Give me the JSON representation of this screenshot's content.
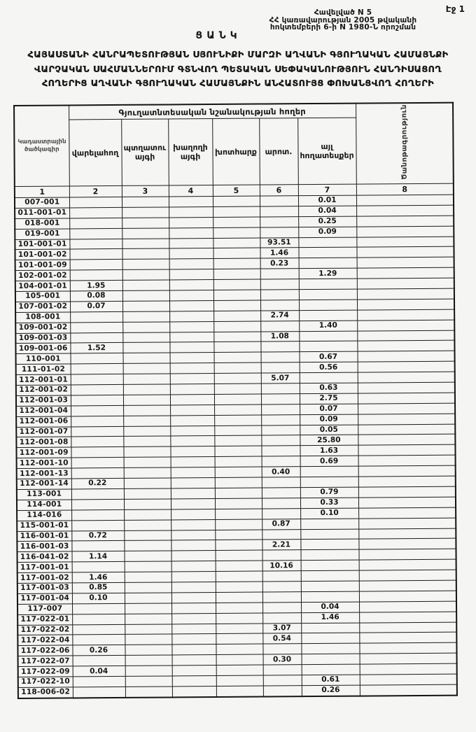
{
  "page": {
    "page_number_label": "Էջ 1",
    "appendix_line1": "Հավելված N 5",
    "appendix_line2": "ՀՀ կառավարության 2005 թվականի",
    "appendix_line3": "հոկտեմբերի 6-ի N 1980-Ն որոշման",
    "list_heading": "ՑԱՆԿ",
    "title_line1": "ՀԱՅԱՍՏԱՆԻ ՀԱՆՐԱՊԵՏՈՒԹՅԱՆ ՍՅՈՒՆԻՔԻ ՄԱՐԶԻ ԱՂՎԱՆԻ ԳՅՈՒՂԱԿԱՆ ՀԱՄԱՅՆՔԻ",
    "title_line2": "ՎԱՐՉԱԿԱՆ ՍԱՀՄԱՆՆԵՐՈՒՄ ԳՏՆՎՈՂ ՊԵՏԱԿԱՆ ՍԵՓԱԿԱՆՈՒԹՅՈՒՆ ՀԱՆԴԻՍԱՑՈՂ",
    "title_line3": "ՀՈՂԵՐԻՑ ԱՂՎԱՆԻ ԳՅՈՒՂԱԿԱՆ ՀԱՄԱՅՆՔԻՆ ԱՆՀԱՏՈՒՅՑ ՓՈԽԱՆՑՎՈՂ ՀՈՂԵՐԻ"
  },
  "table": {
    "code_header": "Կադաստրային ծածկագիր",
    "group_header": "Գյուղատնտեսական նշանակության հողեր",
    "sub_headers": [
      "վարելահող",
      "պտղատու այգի",
      "խաղողի այգի",
      "խոտհարք",
      "արոտ.",
      "այլ հողատեսքեր"
    ],
    "note_header": "Ծանոթագրություն",
    "column_numbers": [
      "1",
      "2",
      "3",
      "4",
      "5",
      "6",
      "7",
      "8"
    ],
    "rows": [
      {
        "code": "007-001",
        "v": [
          "",
          "",
          "",
          "",
          "",
          "0.01",
          ""
        ]
      },
      {
        "code": "011-001-01",
        "v": [
          "",
          "",
          "",
          "",
          "",
          "0.04",
          ""
        ]
      },
      {
        "code": "018-001",
        "v": [
          "",
          "",
          "",
          "",
          "",
          "0.25",
          ""
        ]
      },
      {
        "code": "019-001",
        "v": [
          "",
          "",
          "",
          "",
          "",
          "0.09",
          ""
        ]
      },
      {
        "code": "101-001-01",
        "v": [
          "",
          "",
          "",
          "",
          "93.51",
          "",
          ""
        ]
      },
      {
        "code": "101-001-02",
        "v": [
          "",
          "",
          "",
          "",
          "1.46",
          "",
          ""
        ]
      },
      {
        "code": "101-001-09",
        "v": [
          "",
          "",
          "",
          "",
          "0.23",
          "",
          ""
        ]
      },
      {
        "code": "102-001-02",
        "v": [
          "",
          "",
          "",
          "",
          "",
          "1.29",
          ""
        ]
      },
      {
        "code": "104-001-01",
        "v": [
          "1.95",
          "",
          "",
          "",
          "",
          "",
          ""
        ]
      },
      {
        "code": "105-001",
        "v": [
          "0.08",
          "",
          "",
          "",
          "",
          "",
          ""
        ]
      },
      {
        "code": "107-001-02",
        "v": [
          "0.07",
          "",
          "",
          "",
          "",
          "",
          ""
        ]
      },
      {
        "code": "108-001",
        "v": [
          "",
          "",
          "",
          "",
          "2.74",
          "",
          ""
        ]
      },
      {
        "code": "109-001-02",
        "v": [
          "",
          "",
          "",
          "",
          "",
          "1.40",
          ""
        ]
      },
      {
        "code": "109-001-03",
        "v": [
          "",
          "",
          "",
          "",
          "1.08",
          "",
          ""
        ]
      },
      {
        "code": "109-001-06",
        "v": [
          "1.52",
          "",
          "",
          "",
          "",
          "",
          ""
        ]
      },
      {
        "code": "110-001",
        "v": [
          "",
          "",
          "",
          "",
          "",
          "0.67",
          ""
        ]
      },
      {
        "code": "111-01-02",
        "v": [
          "",
          "",
          "",
          "",
          "",
          "0.56",
          ""
        ]
      },
      {
        "code": "112-001-01",
        "v": [
          "",
          "",
          "",
          "",
          "5.07",
          "",
          ""
        ]
      },
      {
        "code": "112-001-02",
        "v": [
          "",
          "",
          "",
          "",
          "",
          "0.63",
          ""
        ]
      },
      {
        "code": "112-001-03",
        "v": [
          "",
          "",
          "",
          "",
          "",
          "2.75",
          ""
        ]
      },
      {
        "code": "112-001-04",
        "v": [
          "",
          "",
          "",
          "",
          "",
          "0.07",
          ""
        ]
      },
      {
        "code": "112-001-06",
        "v": [
          "",
          "",
          "",
          "",
          "",
          "0.09",
          ""
        ]
      },
      {
        "code": "112-001-07",
        "v": [
          "",
          "",
          "",
          "",
          "",
          "0.05",
          ""
        ]
      },
      {
        "code": "112-001-08",
        "v": [
          "",
          "",
          "",
          "",
          "",
          "25.80",
          ""
        ]
      },
      {
        "code": "112-001-09",
        "v": [
          "",
          "",
          "",
          "",
          "",
          "1.63",
          ""
        ]
      },
      {
        "code": "112-001-10",
        "v": [
          "",
          "",
          "",
          "",
          "",
          "0.69",
          ""
        ]
      },
      {
        "code": "112-001-13",
        "v": [
          "",
          "",
          "",
          "",
          "0.40",
          "",
          ""
        ]
      },
      {
        "code": "112-001-14",
        "v": [
          "0.22",
          "",
          "",
          "",
          "",
          "",
          ""
        ]
      },
      {
        "code": "113-001",
        "v": [
          "",
          "",
          "",
          "",
          "",
          "0.79",
          ""
        ]
      },
      {
        "code": "114-001",
        "v": [
          "",
          "",
          "",
          "",
          "",
          "0.33",
          ""
        ]
      },
      {
        "code": "114-016",
        "v": [
          "",
          "",
          "",
          "",
          "",
          "0.10",
          ""
        ]
      },
      {
        "code": "115-001-01",
        "v": [
          "",
          "",
          "",
          "",
          "0.87",
          "",
          ""
        ]
      },
      {
        "code": "116-001-01",
        "v": [
          "0.72",
          "",
          "",
          "",
          "",
          "",
          ""
        ]
      },
      {
        "code": "116-001-03",
        "v": [
          "",
          "",
          "",
          "",
          "2.21",
          "",
          ""
        ]
      },
      {
        "code": "116-041-02",
        "v": [
          "1.14",
          "",
          "",
          "",
          "",
          "",
          ""
        ]
      },
      {
        "code": "117-001-01",
        "v": [
          "",
          "",
          "",
          "",
          "10.16",
          "",
          ""
        ]
      },
      {
        "code": "117-001-02",
        "v": [
          "1.46",
          "",
          "",
          "",
          "",
          "",
          ""
        ]
      },
      {
        "code": "117-001-03",
        "v": [
          "0.85",
          "",
          "",
          "",
          "",
          "",
          ""
        ]
      },
      {
        "code": "117-001-04",
        "v": [
          "0.10",
          "",
          "",
          "",
          "",
          "",
          ""
        ]
      },
      {
        "code": "117-007",
        "v": [
          "",
          "",
          "",
          "",
          "",
          "0.04",
          ""
        ]
      },
      {
        "code": "117-022-01",
        "v": [
          "",
          "",
          "",
          "",
          "",
          "1.46",
          ""
        ]
      },
      {
        "code": "117-022-02",
        "v": [
          "",
          "",
          "",
          "",
          "3.07",
          "",
          ""
        ]
      },
      {
        "code": "117-022-04",
        "v": [
          "",
          "",
          "",
          "",
          "0.54",
          "",
          ""
        ]
      },
      {
        "code": "117-022-06",
        "v": [
          "0.26",
          "",
          "",
          "",
          "",
          "",
          ""
        ]
      },
      {
        "code": "117-022-07",
        "v": [
          "",
          "",
          "",
          "",
          "0.30",
          "",
          ""
        ]
      },
      {
        "code": "117-022-09",
        "v": [
          "0.04",
          "",
          "",
          "",
          "",
          "",
          ""
        ]
      },
      {
        "code": "117-022-10",
        "v": [
          "",
          "",
          "",
          "",
          "",
          "0.61",
          ""
        ]
      },
      {
        "code": "118-006-02",
        "v": [
          "",
          "",
          "",
          "",
          "",
          "0.26",
          ""
        ]
      }
    ]
  }
}
